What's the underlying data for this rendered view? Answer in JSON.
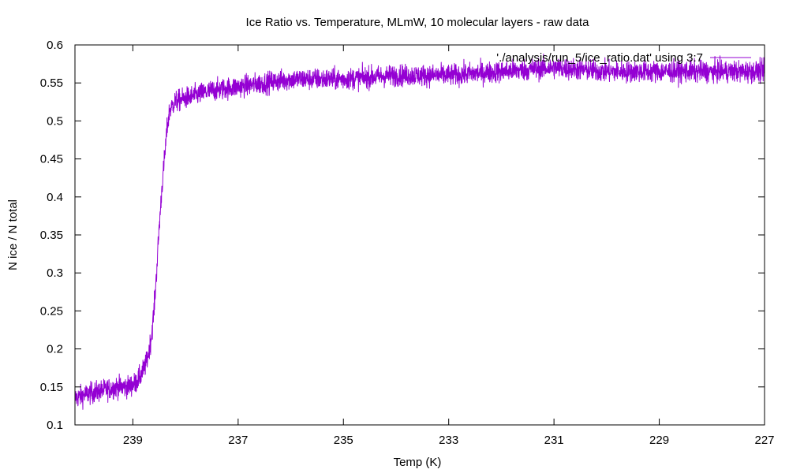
{
  "chart_data": {
    "type": "line",
    "title": "Ice Ratio vs. Temperature, MLmW, 10 molecular layers - raw data",
    "xlabel": "Temp (K)",
    "ylabel": "N ice / N total",
    "xlim": [
      240.1,
      227
    ],
    "ylim": [
      0.1,
      0.6
    ],
    "x_reversed": true,
    "xticks": [
      239,
      237,
      235,
      233,
      231,
      229,
      227
    ],
    "yticks": [
      0.1,
      0.15,
      0.2,
      0.25,
      0.3,
      0.35,
      0.4,
      0.45,
      0.5,
      0.55,
      0.6
    ],
    "grid": false,
    "legend_position": "top-right",
    "series": [
      {
        "name": "'./analysis/run_5/ice_ratio.dat' using 3:7",
        "color": "#9400d3",
        "noise_amplitude": 0.012,
        "x": [
          240.1,
          239.9,
          239.6,
          239.3,
          239.1,
          238.95,
          238.85,
          238.75,
          238.7,
          238.65,
          238.6,
          238.55,
          238.5,
          238.45,
          238.4,
          238.35,
          238.3,
          238.2,
          238.0,
          237.5,
          237.0,
          236.5,
          236.0,
          235.0,
          234.0,
          233.0,
          232.0,
          231.0,
          230.0,
          229.0,
          228.0,
          227.0
        ],
        "y": [
          0.135,
          0.14,
          0.145,
          0.15,
          0.15,
          0.155,
          0.165,
          0.18,
          0.195,
          0.215,
          0.25,
          0.3,
          0.36,
          0.41,
          0.45,
          0.49,
          0.515,
          0.525,
          0.53,
          0.54,
          0.545,
          0.55,
          0.555,
          0.555,
          0.56,
          0.56,
          0.565,
          0.57,
          0.565,
          0.565,
          0.565,
          0.565
        ]
      }
    ]
  }
}
